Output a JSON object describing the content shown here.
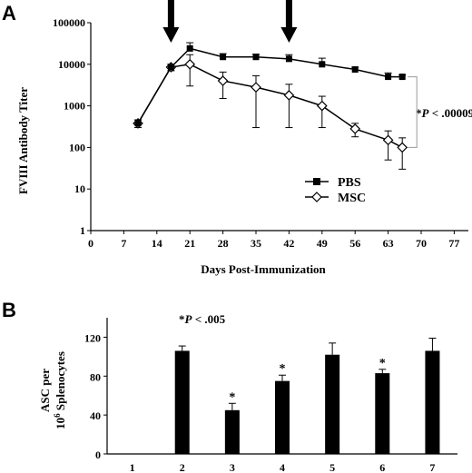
{
  "chart_data": [
    {
      "panel_label": "A",
      "type": "line",
      "xlabel": "Days Post-Immunization",
      "ylabel": "FVIII Antibody Titer",
      "xlim": [
        0,
        80
      ],
      "ylim": [
        1,
        100000
      ],
      "y_scale": "log",
      "x_ticks": [
        0,
        7,
        14,
        21,
        28,
        35,
        42,
        49,
        56,
        63,
        70,
        77
      ],
      "y_ticks": [
        1,
        10,
        100,
        1000,
        10000,
        100000
      ],
      "y_tick_labels": [
        "1",
        "10",
        "100",
        "1000",
        "10000",
        "100000"
      ],
      "arrows_at_days": [
        17,
        42
      ],
      "series": [
        {
          "name": "PBS",
          "marker": "filled-square",
          "x": [
            10,
            17,
            21,
            28,
            35,
            42,
            49,
            56,
            63,
            66
          ],
          "y": [
            380,
            8500,
            24000,
            15000,
            15000,
            13500,
            10000,
            7500,
            5000,
            5000
          ],
          "err": [
            80,
            1500,
            9000,
            3000,
            2500,
            3500,
            4000,
            1000,
            1200,
            500
          ]
        },
        {
          "name": "MSC",
          "marker": "open-diamond",
          "x": [
            10,
            17,
            21,
            28,
            35,
            42,
            49,
            56,
            63,
            66
          ],
          "y": [
            380,
            8500,
            10000,
            4000,
            2800,
            1800,
            1000,
            280,
            150,
            100
          ],
          "err": [
            80,
            1500,
            7000,
            2500,
            2500,
            1500,
            700,
            100,
            100,
            70
          ]
        }
      ],
      "legend_placement": "bottom-right",
      "annotation": {
        "prefix": "*",
        "var": "P",
        "text": " < .00009"
      }
    },
    {
      "panel_label": "B",
      "type": "bar",
      "ylabel_line1": "ASC per",
      "ylabel_line2_pre": "10",
      "ylabel_line2_sup": "6",
      "ylabel_line2_post": " Splenocytes",
      "categories": [
        "1",
        "2",
        "3",
        "4",
        "5",
        "6",
        "7"
      ],
      "values": [
        0,
        106,
        45,
        75,
        102,
        83,
        106
      ],
      "err": [
        0,
        5,
        7,
        6,
        12,
        4,
        13
      ],
      "significant": [
        false,
        false,
        true,
        true,
        false,
        true,
        false
      ],
      "ylim": [
        0,
        140
      ],
      "y_ticks": [
        0,
        40,
        80,
        120
      ],
      "star_symbol": "*",
      "annotation": {
        "prefix": "*",
        "var": "P",
        "text": " < .005"
      }
    }
  ],
  "colors": {
    "ink": "#000000",
    "background": "#ffffff",
    "bracket": "#999999"
  }
}
